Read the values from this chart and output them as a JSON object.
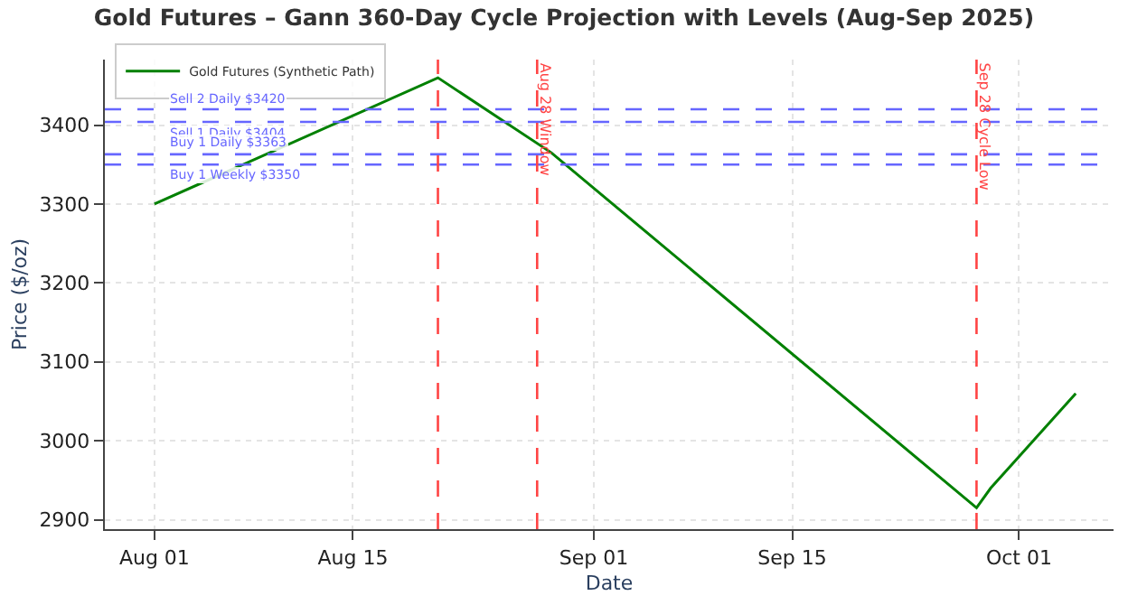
{
  "chart_data": {
    "type": "line",
    "title": "Gold Futures – Gann 360-Day Cycle Projection with Levels (Aug-Sep 2025)",
    "xlabel": "Date",
    "ylabel": "Price ($/oz)",
    "x": [
      "2025-08-01",
      "2025-08-21",
      "2025-08-29",
      "2025-09-28",
      "2025-09-29",
      "2025-10-05"
    ],
    "series": [
      {
        "name": "Gold Futures (Synthetic Path)",
        "color": "#008000",
        "values": [
          3300,
          3460,
          3365,
          2915,
          2940,
          3060
        ]
      }
    ],
    "xlim": [
      "2025-07-28T12:00",
      "2025-10-07T16:00"
    ],
    "xticks": [
      {
        "value": "2025-08-01",
        "label": "Aug 01"
      },
      {
        "value": "2025-08-15",
        "label": "Aug 15"
      },
      {
        "value": "2025-09-01",
        "label": "Sep 01"
      },
      {
        "value": "2025-09-15",
        "label": "Sep 15"
      },
      {
        "value": "2025-10-01",
        "label": "Oct 01"
      }
    ],
    "ylim": [
      2888,
      3483
    ],
    "yticks": [
      2900,
      3000,
      3100,
      3200,
      3300,
      3400
    ],
    "ref_lines": [
      {
        "axis": "y",
        "value": 3420,
        "label": "Sell 2 Daily $3420",
        "color": "#6666ff",
        "line_style": "dashed"
      },
      {
        "axis": "y",
        "value": 3404,
        "label": "Sell 1 Daily $3404",
        "color": "#6666ff",
        "line_style": "dashed"
      },
      {
        "axis": "y",
        "value": 3363,
        "label": "Buy 1 Daily $3363",
        "color": "#6666ff",
        "line_style": "dashed"
      },
      {
        "axis": "y",
        "value": 3350,
        "label": "Buy 1 Weekly $3350",
        "color": "#6666ff",
        "line_style": "dashed"
      },
      {
        "axis": "x",
        "value": "2025-08-21",
        "label": null,
        "color": "#ff4444",
        "line_style": "dashed"
      },
      {
        "axis": "x",
        "value": "2025-08-28",
        "label": "Aug 28 Window",
        "color": "#ff4444",
        "line_style": "dashed"
      },
      {
        "axis": "x",
        "value": "2025-09-28",
        "label": "Sep 28 Cycle Low",
        "color": "#ff4444",
        "line_style": "dashed"
      }
    ],
    "grid": true,
    "legend": "top left",
    "marker": "none",
    "line_style": "solid"
  }
}
